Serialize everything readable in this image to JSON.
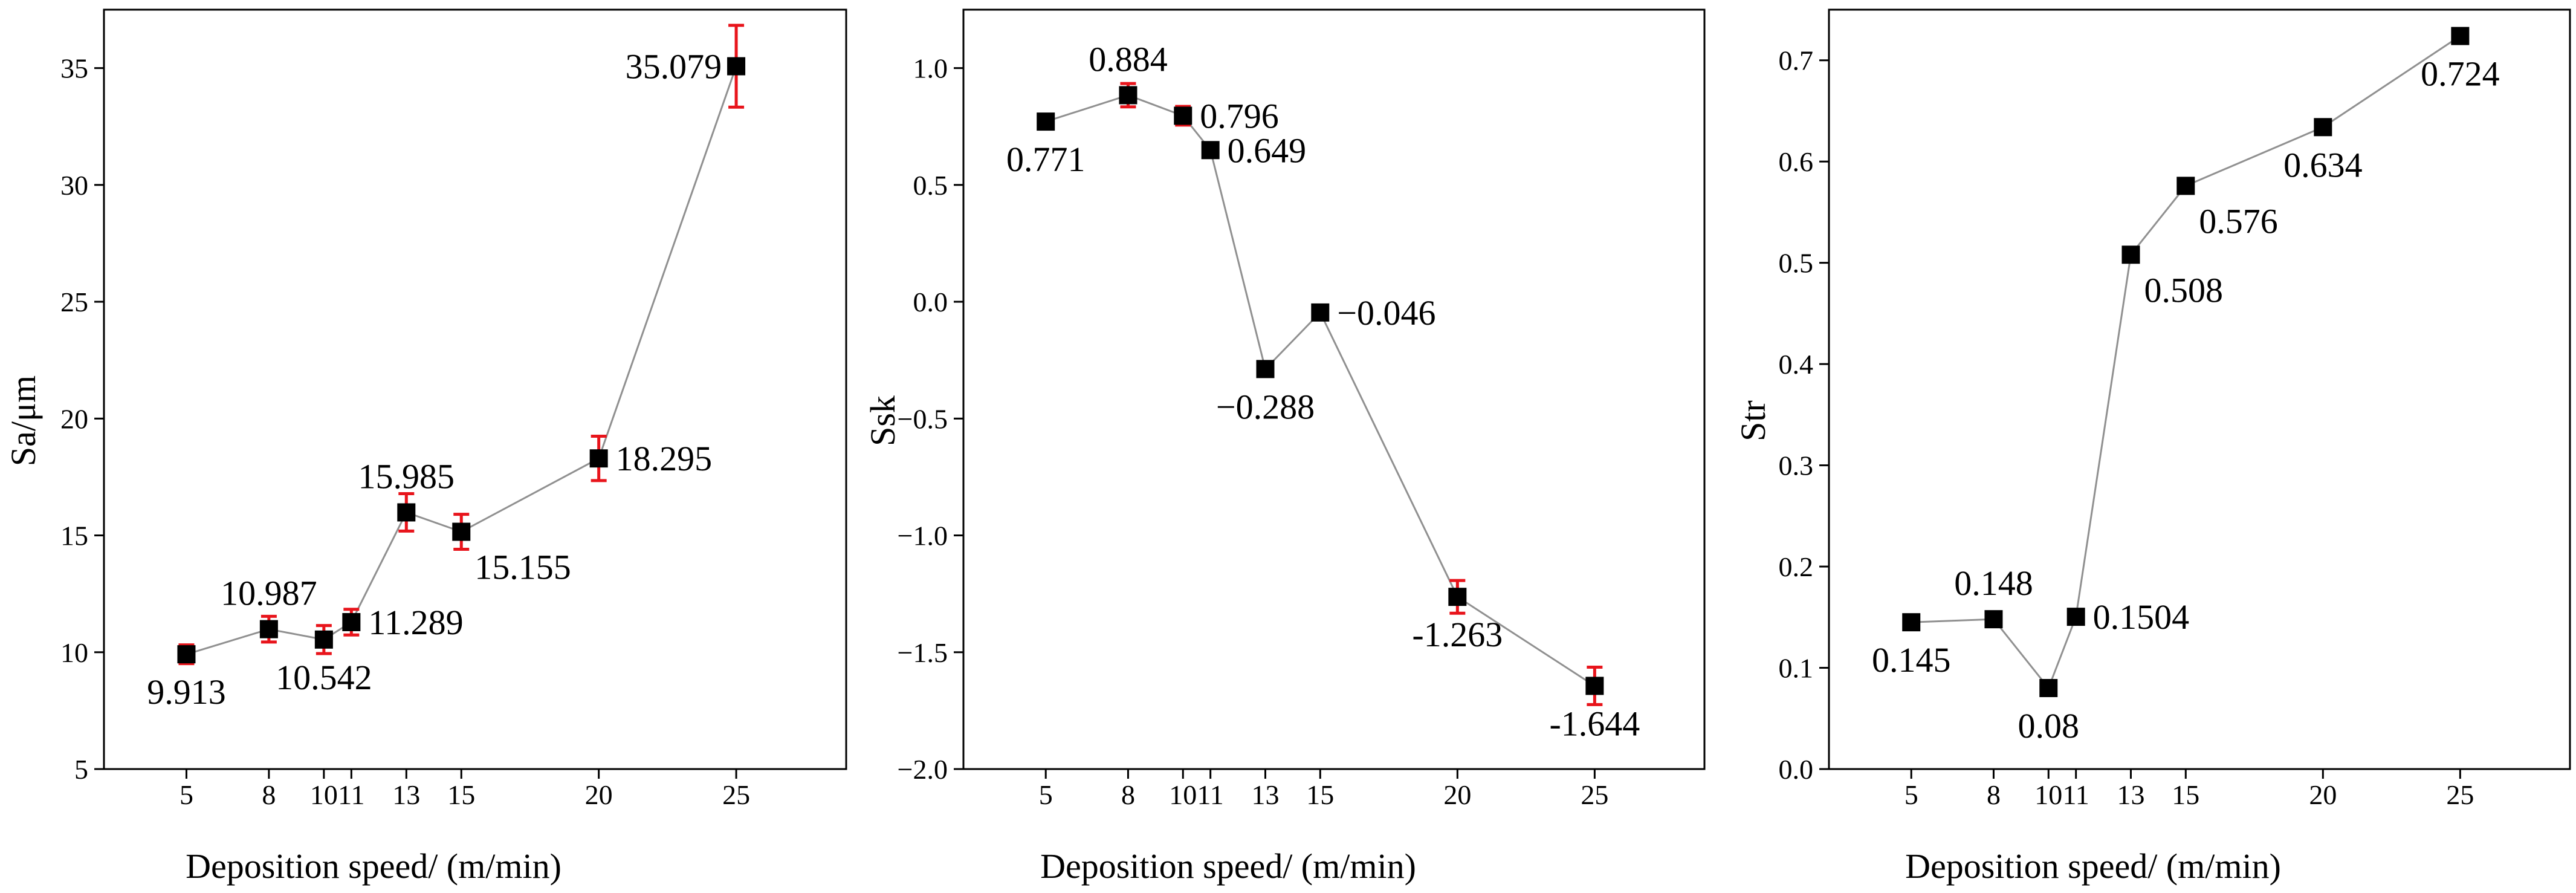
{
  "colors": {
    "marker": "#000000",
    "error_bar": "#e8141b",
    "line": "#909090",
    "axis": "#000000"
  },
  "chart_data": [
    {
      "type": "scatter",
      "title": "",
      "xlabel": "Deposition speed/ (m/min)",
      "ylabel": "Sa/μm",
      "x_ticks": [
        5,
        8,
        10,
        11,
        13,
        15,
        20,
        25
      ],
      "x_tick_labels": [
        "5",
        "8",
        "10",
        "11",
        "13",
        "15",
        "20",
        "25"
      ],
      "xlim": [
        2,
        29
      ],
      "y_ticks": [
        5,
        10,
        15,
        20,
        25,
        30,
        35
      ],
      "y_tick_labels": [
        "5",
        "10",
        "15",
        "20",
        "25",
        "30",
        "35"
      ],
      "ylim": [
        5,
        37.5
      ],
      "x": [
        5,
        8,
        10,
        11,
        13,
        15,
        20,
        25
      ],
      "y": [
        9.913,
        10.987,
        10.542,
        11.289,
        15.985,
        15.155,
        18.295,
        35.079
      ],
      "errors": [
        0.4,
        0.55,
        0.6,
        0.55,
        0.8,
        0.75,
        0.95,
        1.75
      ],
      "labels": [
        "9.913",
        "10.987",
        "10.542",
        "11.289",
        "15.985",
        "15.155",
        "18.295",
        "35.079"
      ],
      "label_positions": [
        "below",
        "above",
        "below",
        "right",
        "above",
        "below-right",
        "right",
        "left"
      ]
    },
    {
      "type": "scatter",
      "title": "",
      "xlabel": "Deposition speed/ (m/min)",
      "ylabel": "Ssk",
      "x_ticks": [
        5,
        8,
        10,
        11,
        13,
        15,
        20,
        25
      ],
      "x_tick_labels": [
        "5",
        "8",
        "10",
        "11",
        "13",
        "15",
        "20",
        "25"
      ],
      "xlim": [
        2,
        29
      ],
      "y_ticks": [
        -2.0,
        -1.5,
        -1.0,
        -0.5,
        0.0,
        0.5,
        1.0
      ],
      "y_tick_labels": [
        "−2.0",
        "−1.5",
        "−1.0",
        "−0.5",
        "0.0",
        "0.5",
        "1.0"
      ],
      "ylim": [
        -2.0,
        1.25
      ],
      "x": [
        5,
        8,
        10,
        11,
        13,
        15,
        20,
        25
      ],
      "y": [
        0.771,
        0.884,
        0.796,
        0.649,
        -0.288,
        -0.046,
        -1.263,
        -1.644
      ],
      "errors": [
        0.03,
        0.05,
        0.04,
        0.03,
        0.03,
        0.03,
        0.07,
        0.08
      ],
      "labels": [
        "0.771",
        "0.884",
        "0.796",
        "0.649",
        "−0.288",
        "−0.046",
        "-1.263",
        "-1.644"
      ],
      "label_positions": [
        "below",
        "above",
        "right",
        "right",
        "below",
        "right",
        "below",
        "below"
      ]
    },
    {
      "type": "scatter",
      "title": "",
      "xlabel": "Deposition speed/ (m/min)",
      "ylabel": "Str",
      "x_ticks": [
        5,
        8,
        10,
        11,
        13,
        15,
        20,
        25
      ],
      "x_tick_labels": [
        "5",
        "8",
        "10",
        "11",
        "13",
        "15",
        "20",
        "25"
      ],
      "xlim": [
        2,
        29
      ],
      "y_ticks": [
        0.0,
        0.1,
        0.2,
        0.3,
        0.4,
        0.5,
        0.6,
        0.7
      ],
      "y_tick_labels": [
        "0.0",
        "0.1",
        "0.2",
        "0.3",
        "0.4",
        "0.5",
        "0.6",
        "0.7"
      ],
      "ylim": [
        0.0,
        0.75
      ],
      "x": [
        5,
        8,
        10,
        11,
        13,
        15,
        20,
        25
      ],
      "y": [
        0.145,
        0.148,
        0.08,
        0.1504,
        0.508,
        0.576,
        0.634,
        0.724
      ],
      "errors": [
        0,
        0,
        0,
        0,
        0,
        0,
        0,
        0
      ],
      "labels": [
        "0.145",
        "0.148",
        "0.08",
        "0.1504",
        "0.508",
        "0.576",
        "0.634",
        "0.724"
      ],
      "label_positions": [
        "below",
        "above",
        "below",
        "right",
        "below-right",
        "below-right",
        "below",
        "below"
      ]
    }
  ]
}
